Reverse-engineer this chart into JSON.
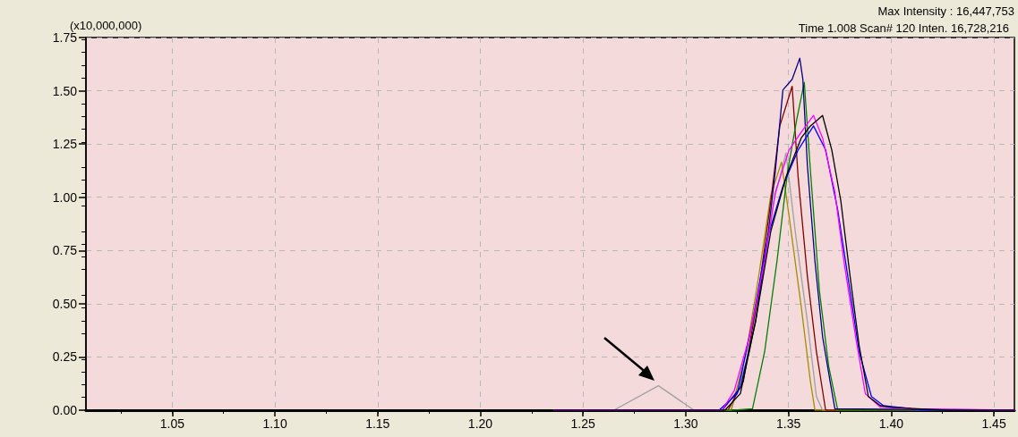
{
  "chart_data": {
    "type": "line",
    "ylabel": "(x10,000,000)",
    "annotations": [
      "Max Intensity : 16,447,753",
      "Time 1.008 Scan# 120 Inten. 16,728,216"
    ],
    "xlim": [
      1.008,
      1.46
    ],
    "ylim": [
      0,
      1.75
    ],
    "xticks": [
      {
        "value": 1.05,
        "label": "1.05"
      },
      {
        "value": 1.1,
        "label": "1.10"
      },
      {
        "value": 1.15,
        "label": "1.15"
      },
      {
        "value": 1.2,
        "label": "1.20"
      },
      {
        "value": 1.25,
        "label": "1.25"
      },
      {
        "value": 1.3,
        "label": "1.30"
      },
      {
        "value": 1.35,
        "label": "1.35"
      },
      {
        "value": 1.4,
        "label": "1.40"
      },
      {
        "value": 1.45,
        "label": "1.45"
      }
    ],
    "yticks": [
      {
        "value": 0,
        "label": "0.00"
      },
      {
        "value": 0.25,
        "label": "0.25"
      },
      {
        "value": 0.5,
        "label": "0.50"
      },
      {
        "value": 0.75,
        "label": "0.75"
      },
      {
        "value": 1,
        "label": "1.00"
      },
      {
        "value": 1.25,
        "label": "1.25"
      },
      {
        "value": 1.5,
        "label": "1.50"
      },
      {
        "value": 1.75,
        "label": "1.75"
      }
    ],
    "grid": true,
    "marker": "none",
    "line_style": "solid",
    "series": [
      {
        "color": "#a0a0a0",
        "x": [
          1.236,
          1.265,
          1.2867,
          1.304,
          1.3221,
          1.331,
          1.3369,
          1.3429,
          1.3488,
          1.3533,
          1.3592,
          1.3636,
          1.3666,
          1.46
        ],
        "values": [
          0,
          0,
          0.115,
          0,
          0,
          0.275,
          0.614,
          0.982,
          1.208,
          0.84,
          0.417,
          0.064,
          0,
          0
        ]
      },
      {
        "color": "#a09000",
        "x": [
          1.236,
          1.3221,
          1.3295,
          1.3355,
          1.3414,
          1.3466,
          1.3503,
          1.3562,
          1.3607,
          1.3629,
          1.46
        ],
        "values": [
          0,
          0,
          0.275,
          0.629,
          1.01,
          1.165,
          0.911,
          0.487,
          0.134,
          0,
          0
        ]
      },
      {
        "color": "#800000",
        "x": [
          1.236,
          1.3206,
          1.328,
          1.3355,
          1.3414,
          1.3458,
          1.3518,
          1.3547,
          1.3592,
          1.3636,
          1.3681,
          1.46
        ],
        "values": [
          0,
          0,
          0.134,
          0.558,
          0.982,
          1.335,
          1.521,
          1.095,
          0.629,
          0.275,
          0,
          0
        ]
      },
      {
        "color": "#008000",
        "x": [
          1.236,
          1.3236,
          1.3325,
          1.3384,
          1.3444,
          1.3496,
          1.354,
          1.3577,
          1.3607,
          1.3651,
          1.3696,
          1.374,
          1.46
        ],
        "values": [
          0,
          0,
          0.007,
          0.275,
          0.699,
          1.123,
          1.363,
          1.54,
          1.123,
          0.558,
          0.205,
          0,
          0
        ]
      },
      {
        "color": "#000080",
        "x": [
          1.236,
          1.3177,
          1.3266,
          1.334,
          1.3399,
          1.3436,
          1.3473,
          1.3518,
          1.3555,
          1.357,
          1.3592,
          1.3629,
          1.3666,
          1.3703,
          1.3726,
          1.46
        ],
        "values": [
          0,
          0,
          0.106,
          0.417,
          0.812,
          1.123,
          1.504,
          1.554,
          1.653,
          1.554,
          1.151,
          0.699,
          0.346,
          0.134,
          0.007,
          0
        ]
      },
      {
        "color": "#0000ff",
        "x": [
          1.236,
          1.3162,
          1.3251,
          1.3325,
          1.3399,
          1.3473,
          1.3547,
          1.3622,
          1.3681,
          1.374,
          1.38,
          1.3844,
          1.3904,
          1.3963,
          1.4156,
          1.46
        ],
        "values": [
          0,
          0,
          0.078,
          0.417,
          0.812,
          1.052,
          1.222,
          1.335,
          1.222,
          0.939,
          0.558,
          0.275,
          0.064,
          0.021,
          0,
          0
        ]
      },
      {
        "color": "#ff00ff",
        "x": [
          1.236,
          1.3177,
          1.3236,
          1.331,
          1.3384,
          1.3436,
          1.3503,
          1.3562,
          1.3622,
          1.3666,
          1.3726,
          1.377,
          1.3829,
          1.3874,
          1.3948,
          1.4096,
          1.46
        ],
        "values": [
          0,
          0,
          0.092,
          0.346,
          0.699,
          1.024,
          1.222,
          1.306,
          1.384,
          1.278,
          1.024,
          0.699,
          0.332,
          0.078,
          0.014,
          0.007,
          0
        ]
      },
      {
        "color": "#000000",
        "x": [
          1.236,
          1.3191,
          1.3266,
          1.334,
          1.3414,
          1.3488,
          1.3562,
          1.3607,
          1.3666,
          1.3711,
          1.3755,
          1.38,
          1.3844,
          1.3889,
          1.3948,
          1.4,
          1.4126,
          1.4274,
          1.46
        ],
        "values": [
          0,
          0,
          0.078,
          0.417,
          0.84,
          1.095,
          1.278,
          1.335,
          1.384,
          1.222,
          0.982,
          0.629,
          0.304,
          0.064,
          0.021,
          0.014,
          0.007,
          0,
          0
        ]
      }
    ]
  }
}
